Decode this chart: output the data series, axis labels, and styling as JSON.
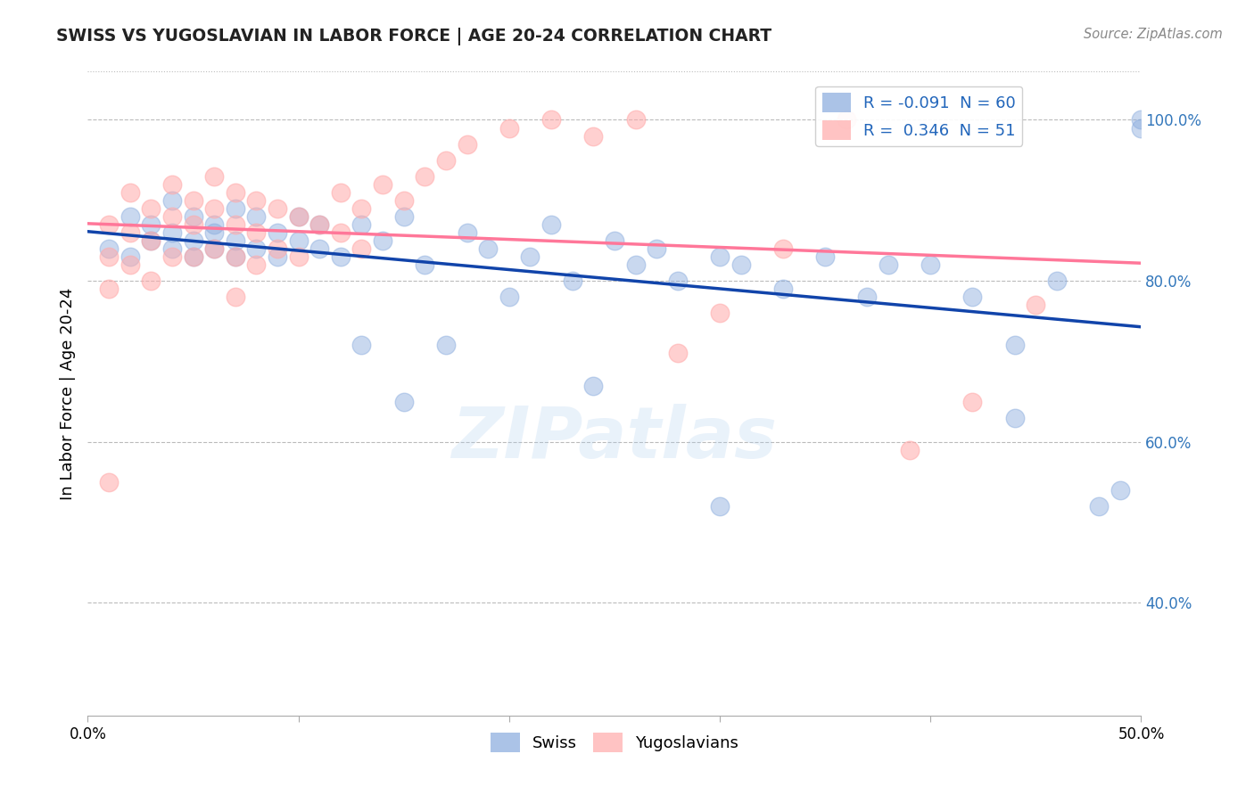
{
  "title": "SWISS VS YUGOSLAVIAN IN LABOR FORCE | AGE 20-24 CORRELATION CHART",
  "source_text": "Source: ZipAtlas.com",
  "ylabel": "In Labor Force | Age 20-24",
  "xlim": [
    0.0,
    0.5
  ],
  "ylim": [
    0.26,
    1.06
  ],
  "yticks": [
    0.4,
    0.6,
    0.8,
    1.0
  ],
  "ytick_labels": [
    "40.0%",
    "60.0%",
    "80.0%",
    "100.0%"
  ],
  "xticks": [
    0.0,
    0.1,
    0.2,
    0.3,
    0.4,
    0.5
  ],
  "xtick_labels": [
    "0.0%",
    "",
    "",
    "",
    "",
    "50.0%"
  ],
  "blue_color": "#88AADD",
  "pink_color": "#FFAAAA",
  "blue_line_color": "#1144AA",
  "pink_line_color": "#FF7799",
  "legend_blue_R": "-0.091",
  "legend_blue_N": "60",
  "legend_pink_R": "0.346",
  "legend_pink_N": "51",
  "watermark": "ZIPatlas",
  "swiss_x": [
    0.01,
    0.02,
    0.02,
    0.03,
    0.03,
    0.04,
    0.04,
    0.04,
    0.05,
    0.05,
    0.05,
    0.06,
    0.06,
    0.06,
    0.07,
    0.07,
    0.07,
    0.08,
    0.08,
    0.09,
    0.09,
    0.1,
    0.1,
    0.11,
    0.11,
    0.12,
    0.13,
    0.14,
    0.15,
    0.16,
    0.18,
    0.19,
    0.21,
    0.22,
    0.23,
    0.25,
    0.26,
    0.27,
    0.28,
    0.3,
    0.31,
    0.33,
    0.35,
    0.37,
    0.4,
    0.42,
    0.44,
    0.46,
    0.48,
    0.49,
    0.5,
    0.5,
    0.44,
    0.38,
    0.3,
    0.24,
    0.2,
    0.17,
    0.15,
    0.13
  ],
  "swiss_y": [
    0.84,
    0.88,
    0.83,
    0.87,
    0.85,
    0.9,
    0.86,
    0.84,
    0.88,
    0.85,
    0.83,
    0.87,
    0.84,
    0.86,
    0.89,
    0.85,
    0.83,
    0.88,
    0.84,
    0.86,
    0.83,
    0.88,
    0.85,
    0.87,
    0.84,
    0.83,
    0.87,
    0.85,
    0.88,
    0.82,
    0.86,
    0.84,
    0.83,
    0.87,
    0.8,
    0.85,
    0.82,
    0.84,
    0.8,
    0.83,
    0.82,
    0.79,
    0.83,
    0.78,
    0.82,
    0.78,
    0.72,
    0.8,
    0.52,
    0.54,
    0.99,
    1.0,
    0.63,
    0.82,
    0.52,
    0.67,
    0.78,
    0.72,
    0.65,
    0.72
  ],
  "yugo_x": [
    0.01,
    0.01,
    0.01,
    0.02,
    0.02,
    0.02,
    0.03,
    0.03,
    0.03,
    0.04,
    0.04,
    0.04,
    0.05,
    0.05,
    0.05,
    0.06,
    0.06,
    0.06,
    0.07,
    0.07,
    0.07,
    0.07,
    0.08,
    0.08,
    0.08,
    0.09,
    0.09,
    0.1,
    0.1,
    0.11,
    0.12,
    0.12,
    0.13,
    0.13,
    0.14,
    0.15,
    0.16,
    0.17,
    0.18,
    0.2,
    0.22,
    0.24,
    0.26,
    0.28,
    0.3,
    0.33,
    0.36,
    0.39,
    0.42,
    0.45,
    0.01
  ],
  "yugo_y": [
    0.87,
    0.83,
    0.79,
    0.91,
    0.86,
    0.82,
    0.89,
    0.85,
    0.8,
    0.92,
    0.88,
    0.83,
    0.9,
    0.87,
    0.83,
    0.93,
    0.89,
    0.84,
    0.91,
    0.87,
    0.83,
    0.78,
    0.9,
    0.86,
    0.82,
    0.89,
    0.84,
    0.88,
    0.83,
    0.87,
    0.91,
    0.86,
    0.89,
    0.84,
    0.92,
    0.9,
    0.93,
    0.95,
    0.97,
    0.99,
    1.0,
    0.98,
    1.0,
    0.71,
    0.76,
    0.84,
    1.0,
    0.59,
    0.65,
    0.77,
    0.55
  ]
}
